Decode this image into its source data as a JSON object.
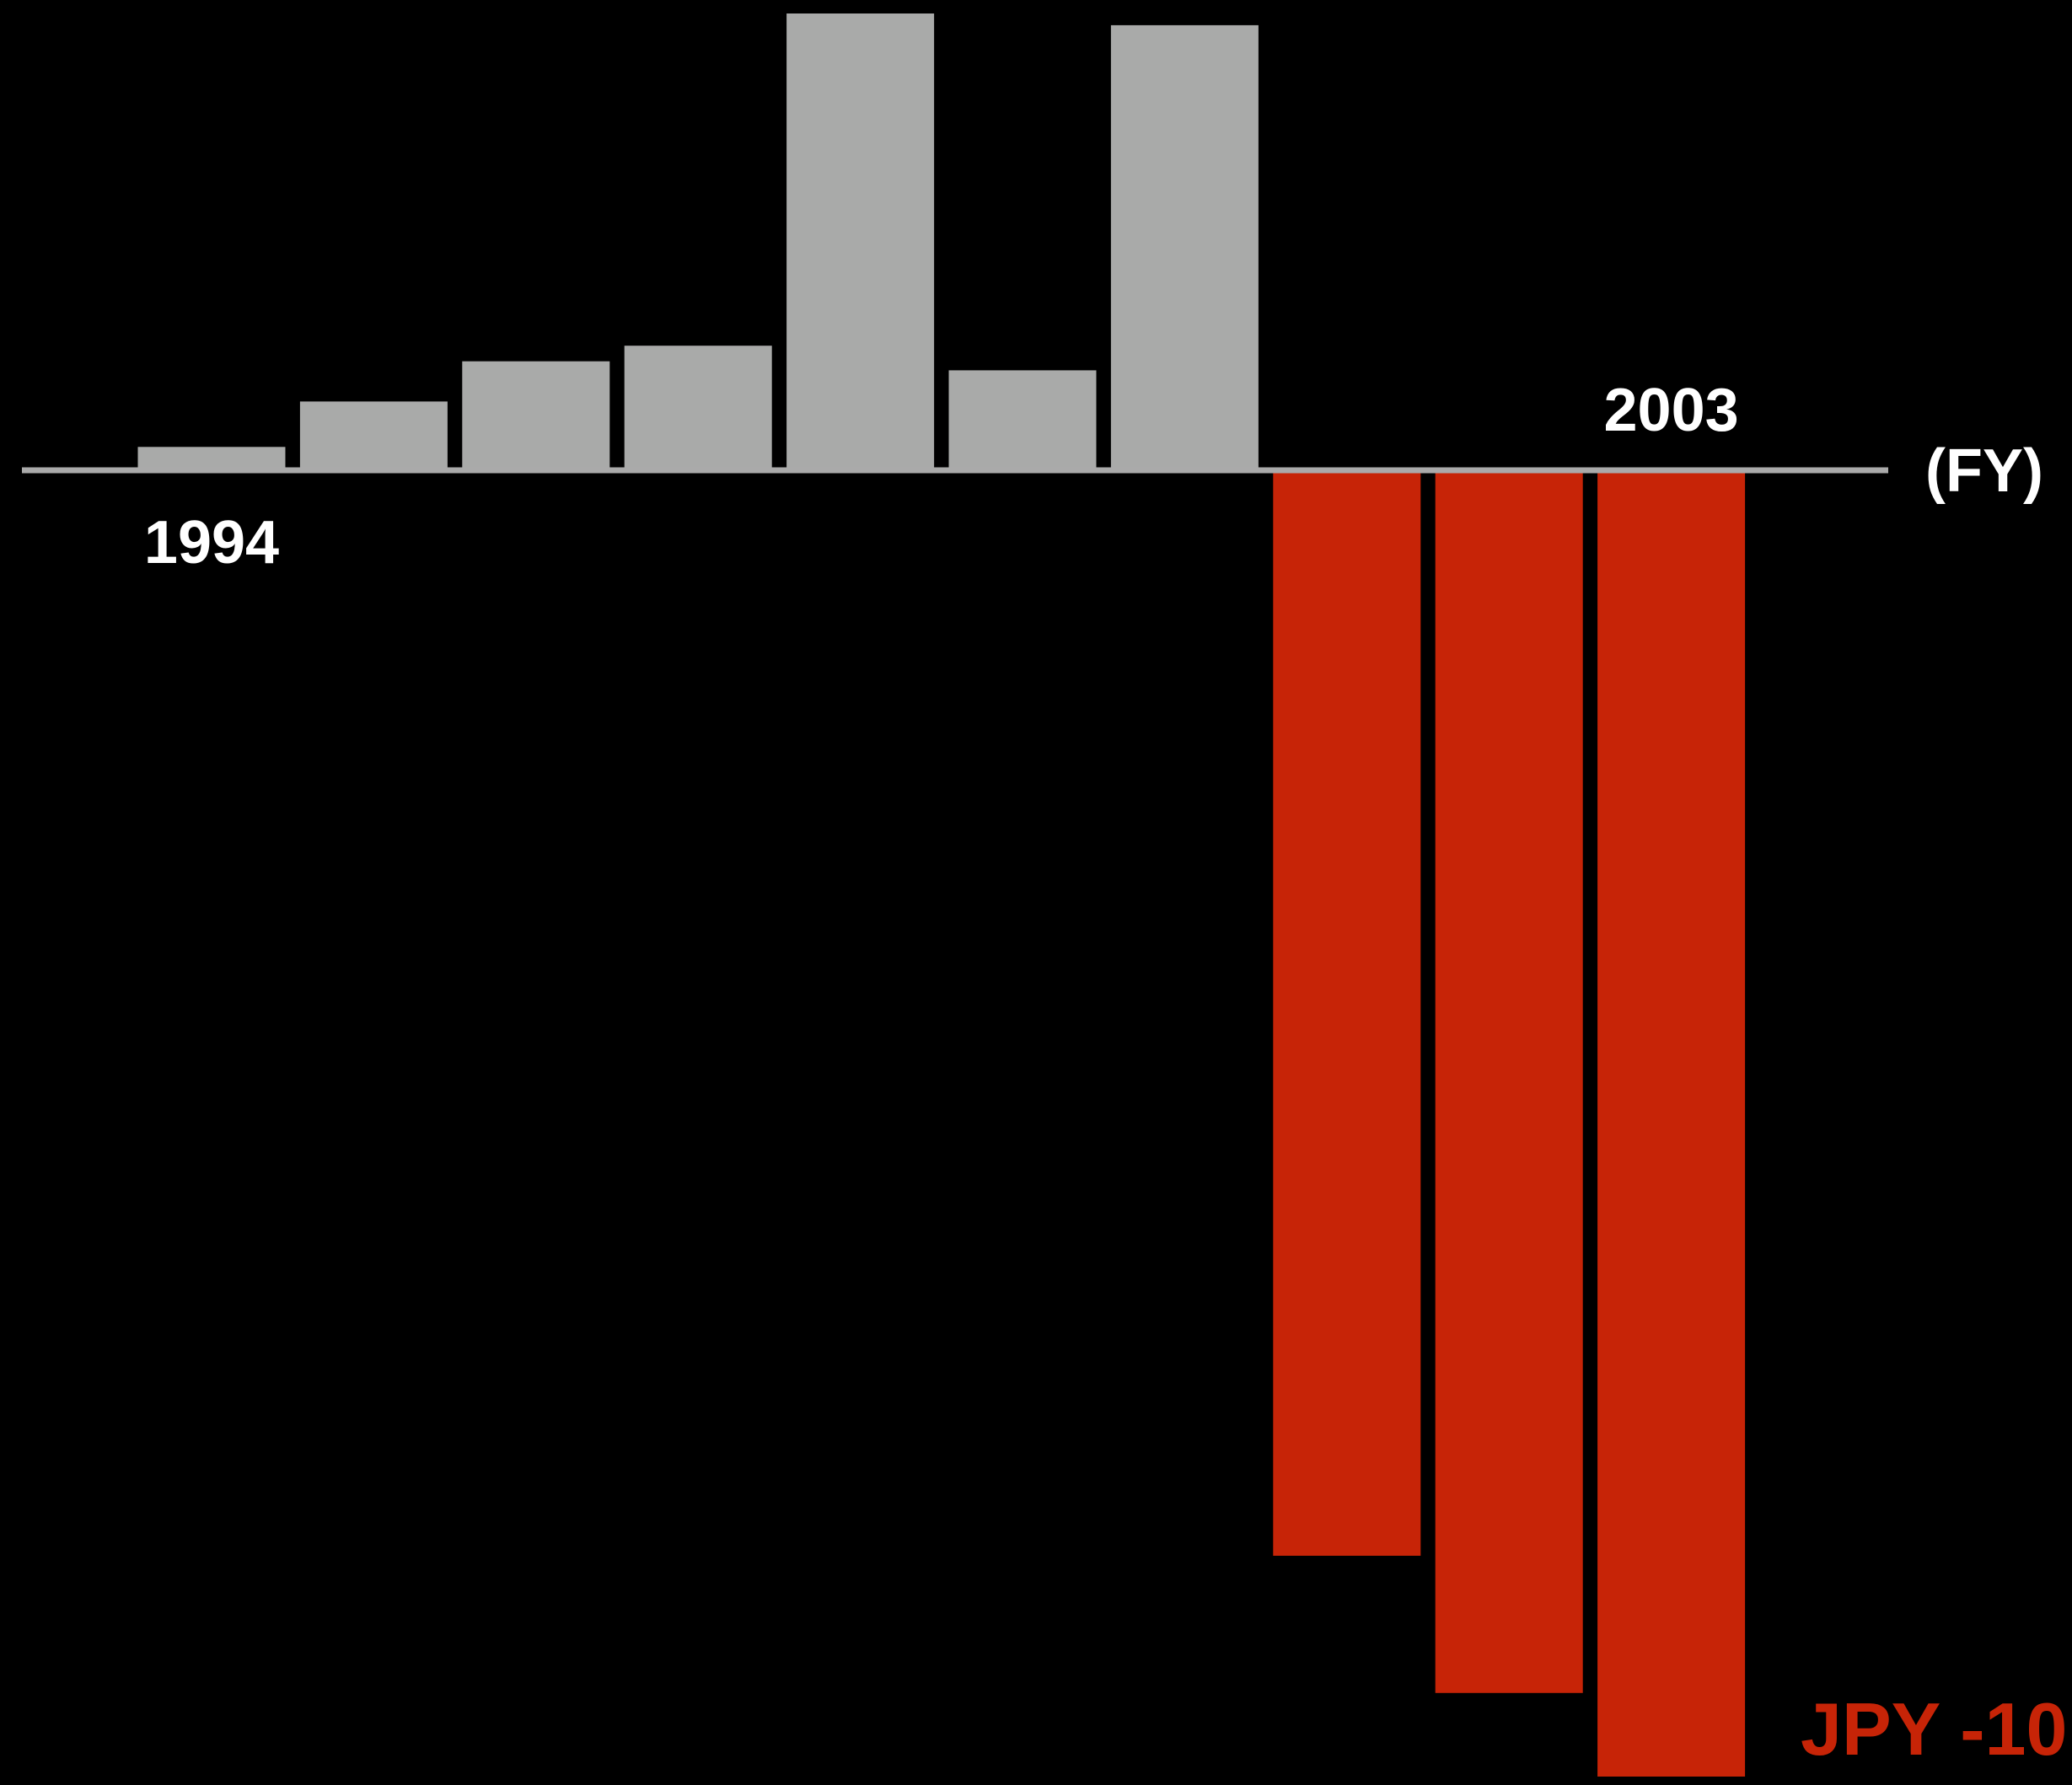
{
  "chart_data": {
    "type": "bar",
    "title": "",
    "xlabel": "",
    "ylabel": "",
    "x_unit": "(FY)",
    "categories": [
      "1994",
      "1995",
      "1996",
      "1997",
      "1998",
      "1999",
      "2000",
      "2001",
      "2002",
      "2003"
    ],
    "x_tick_labels": [
      {
        "category": "1994",
        "text": "1994",
        "side": "below"
      },
      {
        "category": "2003",
        "text": "2003",
        "side": "above"
      }
    ],
    "values": [
      -1.8,
      -5.3,
      -8.4,
      -9.6,
      -35.2,
      -7.7,
      -34.3,
      83.1,
      93.6,
      100.0
    ],
    "ylim": [
      -35.2,
      100.0
    ],
    "grid": false,
    "legend": "none",
    "colors": {
      "background": "#000000",
      "axis": "#aaaaaa",
      "bar_before": "#a9aaa9",
      "bar_after": "#c72407",
      "label": "#ffffff",
      "annotation": "#c72407"
    },
    "annotation": {
      "text": "JPY -10",
      "category": "2003"
    }
  }
}
